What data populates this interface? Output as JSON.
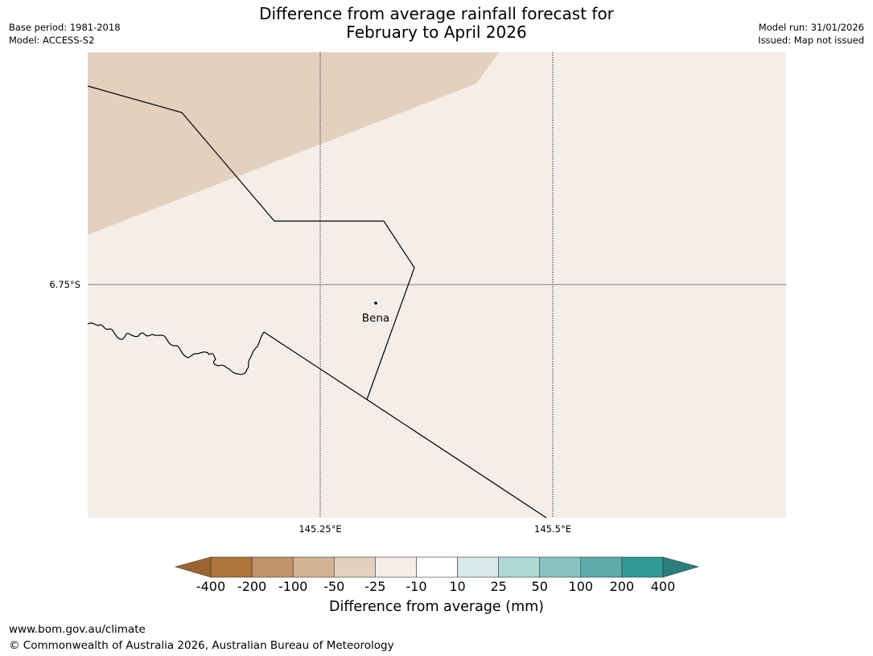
{
  "title": {
    "line1": "Difference from average rainfall forecast for",
    "line2": "February to April 2026"
  },
  "meta_left": {
    "base_period": "Base period: 1981-2018",
    "model": "Model: ACCESS-S2"
  },
  "meta_right": {
    "model_run": "Model run: 31/01/2026",
    "issued": "Issued: Map not issued"
  },
  "map": {
    "lat_label": "6.75°S",
    "lon_labels": [
      "145.25°E",
      "145.5°E"
    ],
    "place_label": "Bena",
    "colors": {
      "background": "#f5ede8",
      "dry_zone": "#e3d0bf",
      "border": "#000000",
      "gridline": "#000000"
    },
    "shaded_category": "-50"
  },
  "colorbar": {
    "title": "Difference from average (mm)",
    "labels": [
      "-400",
      "-200",
      "-100",
      "-50",
      "-25",
      "-10",
      "10",
      "25",
      "50",
      "100",
      "200",
      "400"
    ],
    "colors": [
      "#ae7438",
      "#c29369",
      "#d4b295",
      "#e3d0bf",
      "#f5ede8",
      "#ffffff",
      "#d7e9e9",
      "#afd7d6",
      "#86c3c0",
      "#5bacab",
      "#2f9996"
    ],
    "extend_low_color": "#9b6531",
    "extend_high_color": "#2a7f7d"
  },
  "footer": {
    "url": "www.bom.gov.au/climate",
    "copyright": "© Commonwealth of Australia 2026, Australian Bureau of Meteorology"
  }
}
